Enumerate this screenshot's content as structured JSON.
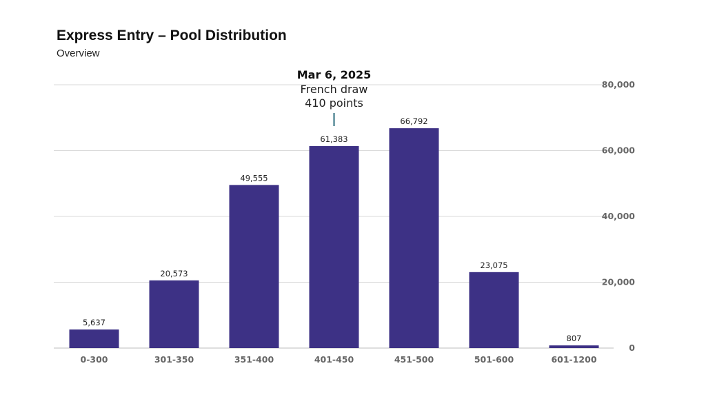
{
  "chart_data": {
    "type": "bar",
    "title": "Express Entry – Pool Distribution",
    "subtitle": "Overview",
    "categories": [
      "0-300",
      "301-350",
      "351-400",
      "401-450",
      "451-500",
      "501-600",
      "601-1200"
    ],
    "values": [
      5637,
      20573,
      49555,
      61383,
      66792,
      23075,
      807
    ],
    "value_labels": [
      "5,637",
      "20,573",
      "49,555",
      "61,383",
      "66,792",
      "23,075",
      "807"
    ],
    "y_ticks": [
      0,
      20000,
      40000,
      60000,
      80000
    ],
    "y_tick_labels": [
      "0",
      "20,000",
      "40,000",
      "60,000",
      "80,000"
    ],
    "ylim": [
      0,
      80000
    ],
    "y_axis_side": "right",
    "grid": true,
    "bar_color": "#3d3185",
    "annotation": {
      "category": "401-450",
      "date": "Mar 6, 2025",
      "line1": "French draw",
      "line2": "410 points",
      "color": "#2a6b7c"
    }
  }
}
